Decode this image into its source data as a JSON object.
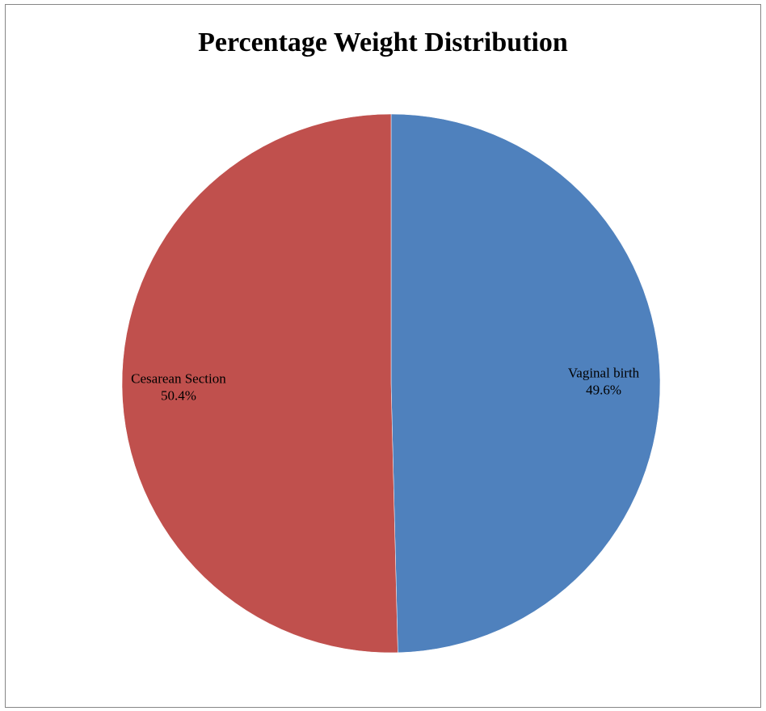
{
  "chart_data": {
    "type": "pie",
    "title": "Percentage Weight Distribution",
    "slices": [
      {
        "label": "Vaginal birth",
        "value": 49.6,
        "value_label": "49.6%",
        "color": "#4F81BD"
      },
      {
        "label": "Cesarean Section",
        "value": 50.4,
        "value_label": "50.4%",
        "color": "#C0504D"
      }
    ],
    "start_angle": "12 o'clock",
    "direction": "clockwise",
    "legend": "none",
    "data_labels": "inside, category name and percentage"
  }
}
